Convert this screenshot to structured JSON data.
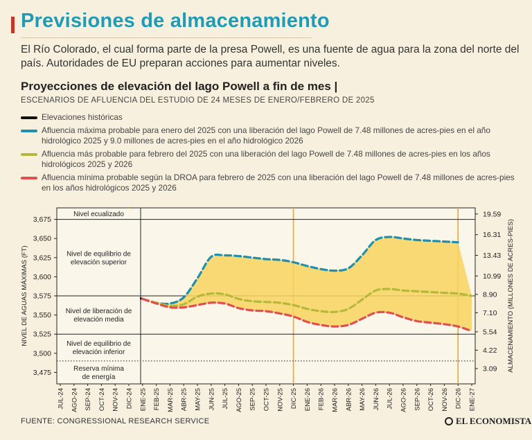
{
  "header": {
    "title": "Previsiones de almacenamiento",
    "description": "El Río Colorado, el cual forma parte de la presa Powell, es una fuente de agua para la zona del norte del país. Autoridades de EU preparan acciones para aumentar niveles.",
    "subtitle": "Proyecciones de elevación del lago Powell a fin de mes |",
    "subnote": "ESCENARIOS DE AFLUENCIA DEL ESTUDIO DE 24 MESES DE ENERO/FEBRERO DE 2025"
  },
  "legend": [
    {
      "label": "Elevaciones históricas",
      "color": "#111111"
    },
    {
      "label": "Afluencia máxima probable para enero del 2025 con una liberación del lago Powell de 7.48 millones de acres-pies en el año hidrológico 2025 y 9.0 millones de acres-pies en el año hidrológico 2026",
      "color": "#1e8fae"
    },
    {
      "label": "Afluencia más probable para febrero del 2025 con una liberación del lago Powell de 7.48 millones de acres-pies en los años hidrológicos 2025 y 2026",
      "color": "#b6b83a"
    },
    {
      "label": "Afluencia mínima probable según la DROA para febrero de 2025 con una liberación del lago Powell de 7.48 millones de acres-pies en los años hidrológicos 2025 y 2026",
      "color": "#e05050"
    }
  ],
  "chart_data": {
    "type": "line",
    "ylabel_left": "NIVEL DE AGUAS MÁXIMAS (FT)",
    "ylabel_right": "ALMACENAMIENTO (MILLONES DE ACRES-PIES)",
    "ylim": [
      3460,
      3690
    ],
    "y_ticks": [
      3675,
      3650,
      3625,
      3600,
      3575,
      3550,
      3525,
      3500,
      3475
    ],
    "y_tick_labels": [
      "3,675",
      "3,650",
      "3,625",
      "3,600",
      "3,575",
      "3,550",
      "3,525",
      "3,500",
      "3,475"
    ],
    "right_ticks": [
      {
        "elev": 3682,
        "label": "19.59"
      },
      {
        "elev": 3655,
        "label": "16.31"
      },
      {
        "elev": 3628,
        "label": "13.43"
      },
      {
        "elev": 3601,
        "label": "10.99"
      },
      {
        "elev": 3577,
        "label": "8.90"
      },
      {
        "elev": 3553,
        "label": "7.10"
      },
      {
        "elev": 3528,
        "label": "5.54"
      },
      {
        "elev": 3504,
        "label": "4.22"
      },
      {
        "elev": 3480,
        "label": "3.09"
      }
    ],
    "x_labels": [
      "JUL-24",
      "AGO-24",
      "SEP-24",
      "OCT-24",
      "NOV-24",
      "DIC-24",
      "ENE-25",
      "FEB-25",
      "MAR-25",
      "ABR-25",
      "MAY-25",
      "JUN-25",
      "JUL-25",
      "AGO-25",
      "SEP-25",
      "OCT-25",
      "NOV-25",
      "DIC-25",
      "ENE-26",
      "FEB-26",
      "MAR-26",
      "ABR-26",
      "MAY-26",
      "JUN-26",
      "JUL-26",
      "AGO-26",
      "SEP-26",
      "OCT-26",
      "NOV-26",
      "DIC-26",
      "ENE-27"
    ],
    "zones": [
      {
        "label": "Nivel ecualizado",
        "from": 3675,
        "to": 3690
      },
      {
        "label": "Nivel de equilibrio de elevación superior",
        "from": 3575,
        "to": 3675
      },
      {
        "label": "Nivel de liberación de elevación media",
        "from": 3525,
        "to": 3575
      },
      {
        "label": "Nivel de equilibrio de elevación inferior",
        "from": 3490,
        "to": 3525
      },
      {
        "label": "Reserva mínima de energía",
        "from": 3460,
        "to": 3490
      }
    ],
    "zone_boundaries": [
      3675,
      3575,
      3525
    ],
    "min_power_pool": 3490,
    "orange_verticals": [
      "DIC-24",
      "DIC-25",
      "DIC-26"
    ],
    "series": [
      {
        "name": "Elevaciones históricas",
        "color": "#111111",
        "x": [
          "JUL-24",
          "AGO-24",
          "SEP-24",
          "OCT-24",
          "NOV-24",
          "DIC-24",
          "ENE-25"
        ],
        "values": [
          3587,
          3584,
          3581,
          3580,
          3579,
          3576,
          3571
        ]
      },
      {
        "name": "Afluencia máxima probable",
        "color": "#1e8fae",
        "x": [
          "ENE-25",
          "FEB-25",
          "MAR-25",
          "ABR-25",
          "MAY-25",
          "JUN-25",
          "JUL-25",
          "AGO-25",
          "SEP-25",
          "OCT-25",
          "NOV-25",
          "DIC-25",
          "ENE-26",
          "FEB-26",
          "MAR-26",
          "ABR-26",
          "MAY-26",
          "JUN-26",
          "JUL-26",
          "AGO-26",
          "SEP-26",
          "OCT-26",
          "NOV-26",
          "DIC-26"
        ],
        "values": [
          3571,
          3566,
          3565,
          3573,
          3598,
          3626,
          3628,
          3627,
          3625,
          3623,
          3622,
          3619,
          3614,
          3610,
          3608,
          3611,
          3628,
          3648,
          3652,
          3650,
          3648,
          3647,
          3646,
          3645
        ]
      },
      {
        "name": "Afluencia más probable",
        "color": "#b6b83a",
        "x": [
          "ENE-25",
          "FEB-25",
          "MAR-25",
          "ABR-25",
          "MAY-25",
          "JUN-25",
          "JUL-25",
          "AGO-25",
          "SEP-25",
          "OCT-25",
          "NOV-25",
          "DIC-25",
          "ENE-26",
          "FEB-26",
          "MAR-26",
          "ABR-26",
          "MAY-26",
          "JUN-26",
          "JUL-26",
          "AGO-26",
          "SEP-26",
          "OCT-26",
          "NOV-26",
          "DIC-26",
          "ENE-27"
        ],
        "values": [
          3571,
          3566,
          3562,
          3564,
          3574,
          3578,
          3577,
          3571,
          3568,
          3567,
          3566,
          3563,
          3558,
          3555,
          3554,
          3558,
          3570,
          3582,
          3584,
          3582,
          3581,
          3580,
          3579,
          3578,
          3575
        ]
      },
      {
        "name": "Afluencia mínima probable",
        "color": "#e05050",
        "x": [
          "ENE-25",
          "FEB-25",
          "MAR-25",
          "ABR-25",
          "MAY-25",
          "JUN-25",
          "JUL-25",
          "AGO-25",
          "SEP-25",
          "OCT-25",
          "NOV-25",
          "DIC-25",
          "ENE-26",
          "FEB-26",
          "MAR-26",
          "ABR-26",
          "MAY-26",
          "JUN-26",
          "JUL-26",
          "AGO-26",
          "SEP-26",
          "OCT-26",
          "NOV-26",
          "DIC-26",
          "ENE-27"
        ],
        "values": [
          3571,
          3565,
          3560,
          3560,
          3563,
          3566,
          3565,
          3559,
          3556,
          3555,
          3552,
          3548,
          3541,
          3537,
          3535,
          3537,
          3545,
          3553,
          3553,
          3547,
          3542,
          3540,
          3538,
          3535,
          3529
        ]
      }
    ],
    "band": {
      "color": "#f7d35f",
      "between": [
        "Afluencia máxima probable",
        "Afluencia mínima probable"
      ]
    },
    "legend_placement": "top"
  },
  "footer": {
    "source": "FUENTE: CONGRESSIONAL RESEARCH SERVICE",
    "brand": "EL ECONOMISTA"
  }
}
